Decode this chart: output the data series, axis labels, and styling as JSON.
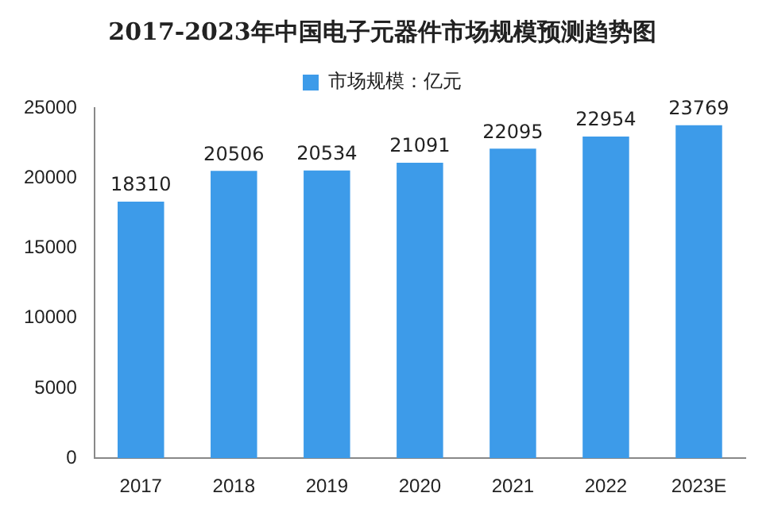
{
  "chart_data": {
    "type": "bar",
    "title": "2017-2023年中国电子元器件市场规模预测趋势图",
    "categories": [
      "2017",
      "2018",
      "2019",
      "2020",
      "2021",
      "2022",
      "2023E"
    ],
    "series": [
      {
        "name": "市场规模：亿元",
        "color": "#3d9be9",
        "values": [
          18310,
          20506,
          20534,
          21091,
          22095,
          22954,
          23769
        ]
      }
    ],
    "ylim": [
      0,
      25000
    ],
    "yticks": [
      0,
      5000,
      10000,
      15000,
      20000,
      25000
    ],
    "grid": false,
    "legend": "top",
    "data_labels": true
  }
}
